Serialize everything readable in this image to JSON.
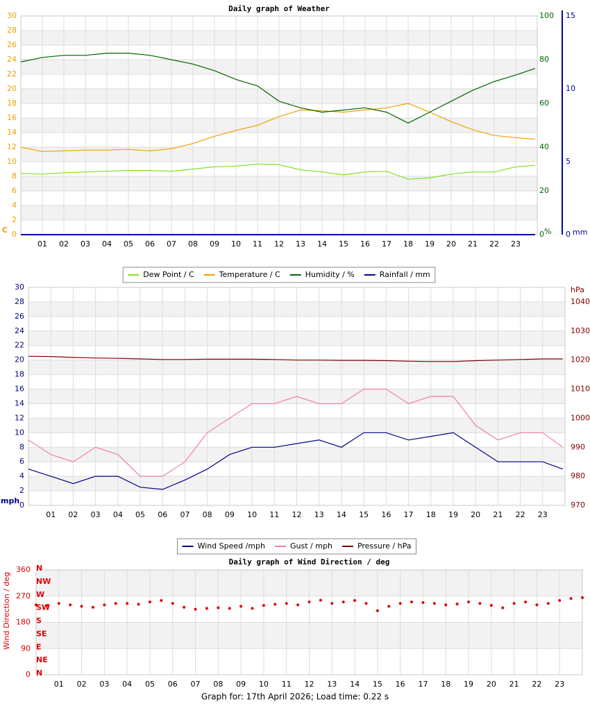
{
  "chart_data": [
    {
      "type": "line",
      "title": "Daily graph of Weather",
      "x": [
        0,
        1,
        2,
        3,
        4,
        5,
        6,
        7,
        8,
        9,
        10,
        11,
        12,
        13,
        14,
        15,
        16,
        17,
        18,
        19,
        20,
        21,
        22,
        23,
        23.9
      ],
      "xlim": [
        0,
        24
      ],
      "xticks": [
        {
          "value": 1,
          "label": "01"
        },
        {
          "value": 2,
          "label": "02"
        },
        {
          "value": 3,
          "label": "03"
        },
        {
          "value": 4,
          "label": "04"
        },
        {
          "value": 5,
          "label": "05"
        },
        {
          "value": 6,
          "label": "06"
        },
        {
          "value": 7,
          "label": "07"
        },
        {
          "value": 8,
          "label": "08"
        },
        {
          "value": 9,
          "label": "09"
        },
        {
          "value": 10,
          "label": "10"
        },
        {
          "value": 11,
          "label": "11"
        },
        {
          "value": 12,
          "label": "12"
        },
        {
          "value": 13,
          "label": "13"
        },
        {
          "value": 14,
          "label": "14"
        },
        {
          "value": 15,
          "label": "15"
        },
        {
          "value": 16,
          "label": "16"
        },
        {
          "value": 17,
          "label": "17"
        },
        {
          "value": 18,
          "label": "18"
        },
        {
          "value": 19,
          "label": "19"
        },
        {
          "value": 20,
          "label": "20"
        },
        {
          "value": 21,
          "label": "21"
        },
        {
          "value": 22,
          "label": "22"
        },
        {
          "value": 23,
          "label": "23"
        }
      ],
      "ylim": [
        0,
        30
      ],
      "yticks": [
        0,
        2,
        4,
        6,
        8,
        10,
        12,
        14,
        16,
        18,
        20,
        22,
        24,
        26,
        28,
        30
      ],
      "y_label": "C",
      "y_color": "#f0a000",
      "y2lim": [
        0,
        100
      ],
      "y2ticks": [
        0,
        20,
        40,
        60,
        80,
        100
      ],
      "y2_label": "%",
      "y2_color": "#006400",
      "y3lim": [
        0,
        15
      ],
      "y3ticks": [
        0,
        5,
        10,
        15
      ],
      "y3_label": "mm",
      "y3_color": "#0000a0",
      "legend": "bottom",
      "series": [
        {
          "name": "Dew Point / C",
          "color": "#80e020",
          "values": [
            8.4,
            8.3,
            8.5,
            8.6,
            8.7,
            8.8,
            8.8,
            8.7,
            9.0,
            9.3,
            9.4,
            9.7,
            9.6,
            8.9,
            8.6,
            8.2,
            8.6,
            8.7,
            7.6,
            7.8,
            8.3,
            8.6,
            8.6,
            9.3,
            9.5
          ]
        },
        {
          "name": "Temperature / C",
          "color": "#f0a000",
          "values": [
            12.0,
            11.4,
            11.5,
            11.6,
            11.6,
            11.7,
            11.5,
            11.8,
            12.5,
            13.5,
            14.3,
            15.0,
            16.2,
            17.1,
            17.0,
            16.8,
            17.1,
            17.4,
            18.0,
            16.8,
            15.5,
            14.4,
            13.6,
            13.3,
            13.1
          ]
        },
        {
          "name": "Humidity / %",
          "color": "#006400",
          "axis": "y2",
          "values": [
            79,
            81,
            82,
            82,
            83,
            83,
            82,
            80,
            78,
            75,
            71,
            68,
            61,
            58,
            56,
            57,
            58,
            56,
            51,
            56,
            61,
            66,
            70,
            73,
            76
          ]
        },
        {
          "name": "Rainfall / mm",
          "color": "#0000a0",
          "axis": "y3",
          "values": [
            0,
            0,
            0,
            0,
            0,
            0,
            0,
            0,
            0,
            0,
            0,
            0,
            0,
            0,
            0,
            0,
            0,
            0,
            0,
            0,
            0,
            0,
            0,
            0,
            0
          ]
        }
      ]
    },
    {
      "type": "line",
      "x": [
        0,
        1,
        2,
        3,
        4,
        5,
        6,
        7,
        8,
        9,
        10,
        11,
        12,
        13,
        14,
        15,
        16,
        17,
        18,
        19,
        20,
        21,
        22,
        23,
        23.9
      ],
      "xlim": [
        0,
        24
      ],
      "xticks": [
        {
          "value": 1,
          "label": "01"
        },
        {
          "value": 2,
          "label": "02"
        },
        {
          "value": 3,
          "label": "03"
        },
        {
          "value": 4,
          "label": "04"
        },
        {
          "value": 5,
          "label": "05"
        },
        {
          "value": 6,
          "label": "06"
        },
        {
          "value": 7,
          "label": "07"
        },
        {
          "value": 8,
          "label": "08"
        },
        {
          "value": 9,
          "label": "09"
        },
        {
          "value": 10,
          "label": "10"
        },
        {
          "value": 11,
          "label": "11"
        },
        {
          "value": 12,
          "label": "12"
        },
        {
          "value": 13,
          "label": "13"
        },
        {
          "value": 14,
          "label": "14"
        },
        {
          "value": 15,
          "label": "15"
        },
        {
          "value": 16,
          "label": "16"
        },
        {
          "value": 17,
          "label": "17"
        },
        {
          "value": 18,
          "label": "18"
        },
        {
          "value": 19,
          "label": "19"
        },
        {
          "value": 20,
          "label": "20"
        },
        {
          "value": 21,
          "label": "21"
        },
        {
          "value": 22,
          "label": "22"
        },
        {
          "value": 23,
          "label": "23"
        }
      ],
      "ylim": [
        0,
        30
      ],
      "yticks": [
        0,
        2,
        4,
        6,
        8,
        10,
        12,
        14,
        16,
        18,
        20,
        22,
        24,
        26,
        28,
        30
      ],
      "y_label": "mph",
      "y_color": "#000080",
      "y2lim": [
        970,
        1045
      ],
      "y2ticks": [
        970,
        980,
        990,
        1000,
        1010,
        1020,
        1030,
        1040
      ],
      "y2_label": "hPa",
      "y2_color": "#800000",
      "legend": "bottom",
      "series": [
        {
          "name": "Wind Speed /mph",
          "color": "#000080",
          "values": [
            5,
            4,
            3,
            4,
            4,
            2.5,
            2.2,
            3.5,
            5,
            7,
            8,
            8,
            8.5,
            9,
            8,
            10,
            10,
            9,
            9.5,
            10,
            8,
            6,
            6,
            6,
            5
          ]
        },
        {
          "name": "Gust / mph",
          "color": "#f080a0",
          "values": [
            9,
            7,
            6,
            8,
            7,
            4,
            4,
            6,
            10,
            12,
            14,
            14,
            15,
            14,
            14,
            16,
            16,
            14,
            15,
            15,
            11,
            9,
            10,
            10,
            8
          ]
        },
        {
          "name": "Pressure / hPa",
          "color": "#800000",
          "axis": "y2",
          "values": [
            1021.3,
            1021.2,
            1020.9,
            1020.7,
            1020.6,
            1020.4,
            1020.2,
            1020.2,
            1020.3,
            1020.3,
            1020.3,
            1020.2,
            1020.0,
            1020.0,
            1019.9,
            1019.9,
            1019.8,
            1019.6,
            1019.5,
            1019.5,
            1019.8,
            1020.0,
            1020.2,
            1020.4,
            1020.4
          ]
        }
      ]
    },
    {
      "type": "scatter",
      "title": "Daily graph of Wind Direction / deg",
      "x": [
        0,
        0.5,
        1,
        1.5,
        2,
        2.5,
        3,
        3.5,
        4,
        4.5,
        5,
        5.5,
        6,
        6.5,
        7,
        7.5,
        8,
        8.5,
        9,
        9.5,
        10,
        10.5,
        11,
        11.5,
        12,
        12.5,
        13,
        13.5,
        14,
        14.5,
        15,
        15.5,
        16,
        16.5,
        17,
        17.5,
        18,
        18.5,
        19,
        19.5,
        20,
        20.5,
        21,
        21.5,
        22,
        22.5,
        23,
        23.5,
        24
      ],
      "xlim": [
        0,
        24
      ],
      "xticks": [
        {
          "value": 1,
          "label": "01"
        },
        {
          "value": 2,
          "label": "02"
        },
        {
          "value": 3,
          "label": "03"
        },
        {
          "value": 4,
          "label": "04"
        },
        {
          "value": 5,
          "label": "05"
        },
        {
          "value": 6,
          "label": "06"
        },
        {
          "value": 7,
          "label": "07"
        },
        {
          "value": 8,
          "label": "08"
        },
        {
          "value": 9,
          "label": "09"
        },
        {
          "value": 10,
          "label": "10"
        },
        {
          "value": 11,
          "label": "11"
        },
        {
          "value": 12,
          "label": "12"
        },
        {
          "value": 13,
          "label": "13"
        },
        {
          "value": 14,
          "label": "14"
        },
        {
          "value": 15,
          "label": "15"
        },
        {
          "value": 16,
          "label": "16"
        },
        {
          "value": 17,
          "label": "17"
        },
        {
          "value": 18,
          "label": "18"
        },
        {
          "value": 19,
          "label": "19"
        },
        {
          "value": 20,
          "label": "20"
        },
        {
          "value": 21,
          "label": "21"
        },
        {
          "value": 22,
          "label": "22"
        },
        {
          "value": 23,
          "label": "23"
        }
      ],
      "ylim": [
        0,
        360
      ],
      "yticks": [
        0,
        90,
        180,
        270,
        360
      ],
      "y_label": "Wind Direction / deg",
      "y_color": "#e00000",
      "compass_ticks": [
        {
          "value": 0,
          "label": "N"
        },
        {
          "value": 45,
          "label": "NE"
        },
        {
          "value": 90,
          "label": "E"
        },
        {
          "value": 135,
          "label": "SE"
        },
        {
          "value": 180,
          "label": "S"
        },
        {
          "value": 225,
          "label": "SW"
        },
        {
          "value": 270,
          "label": "W"
        },
        {
          "value": 315,
          "label": "NW"
        },
        {
          "value": 360,
          "label": "N"
        }
      ],
      "series": [
        {
          "name": "Wind Direction / deg",
          "color": "#e00000",
          "values": [
            240,
            238,
            245,
            240,
            235,
            232,
            240,
            245,
            245,
            242,
            250,
            255,
            245,
            232,
            225,
            228,
            230,
            228,
            235,
            228,
            238,
            242,
            245,
            240,
            250,
            256,
            245,
            250,
            255,
            245,
            220,
            235,
            245,
            250,
            248,
            245,
            240,
            243,
            250,
            245,
            238,
            230,
            245,
            250,
            240,
            245,
            255,
            262,
            265
          ]
        }
      ]
    }
  ],
  "footer": "Graph for: 17th April 2026; Load time: 0.22 s"
}
